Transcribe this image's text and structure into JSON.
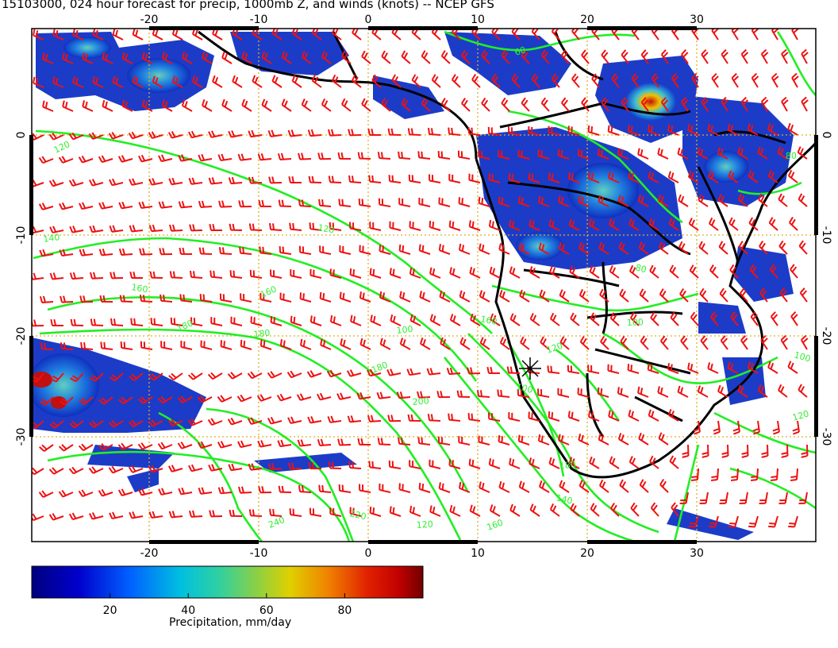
{
  "title": "15103000, 024 hour forecast for precip, 1000mb Z, and winds (knots) -- NCEP GFS",
  "colors": {
    "contour": "#22ee22",
    "wind_barb": "#ee1111",
    "coast": "#000000",
    "grid": "#e0b020"
  },
  "map": {
    "lon_ticks": [
      "-20",
      "-10",
      "0",
      "10",
      "20",
      "30"
    ],
    "lat_ticks": [
      "0",
      "-10",
      "-20",
      "-30"
    ],
    "marker": "+"
  },
  "contour_labels": [
    "120",
    "140",
    "160",
    "180",
    "180",
    "120",
    "160",
    "100",
    "160",
    "180",
    "200",
    "220",
    "240",
    "120",
    "140",
    "160",
    "180",
    "100",
    "120",
    "100",
    "80",
    "60",
    "80",
    "100",
    "120"
  ],
  "colorbar": {
    "label": "Precipitation, mm/day",
    "ticks": [
      "20",
      "40",
      "60",
      "80"
    ],
    "min": 0,
    "max": 100
  }
}
